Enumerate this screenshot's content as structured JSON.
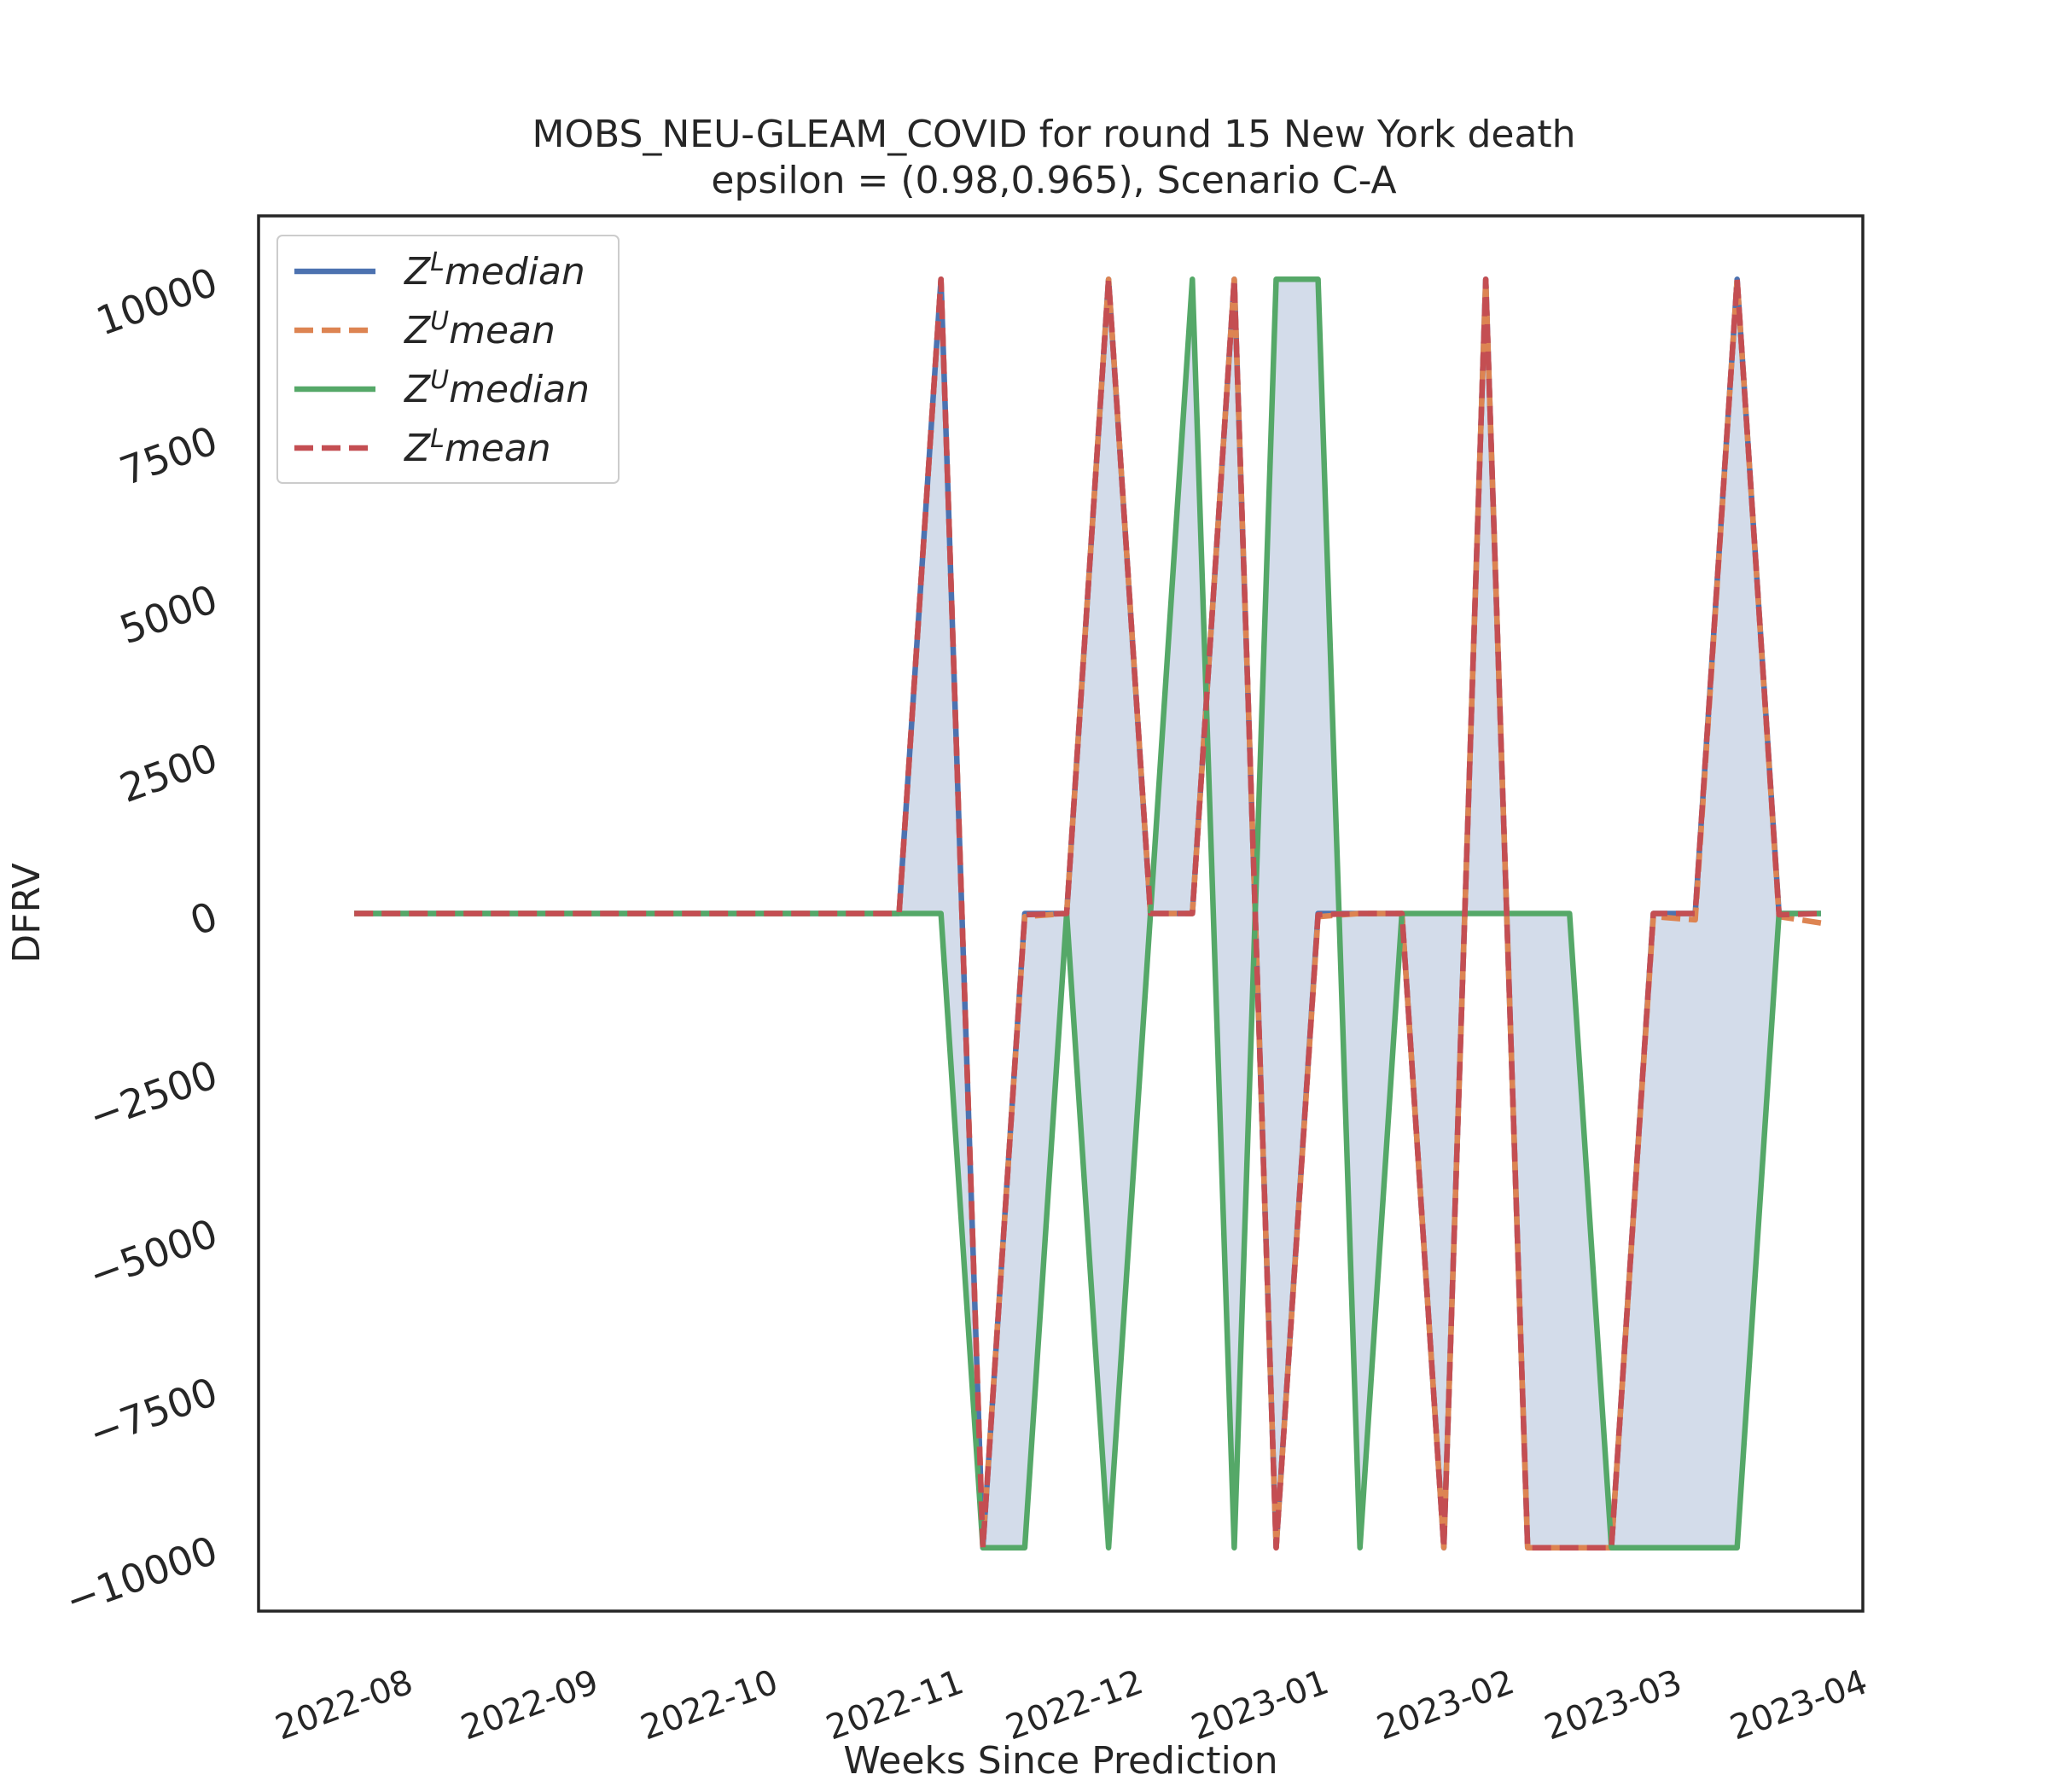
{
  "chart_data": {
    "type": "line",
    "title": "MOBS_NEU-GLEAM_COVID for round 15 New York  death",
    "subtitle": "epsilon = (0.98,0.965), Scenario C-A",
    "xlabel": "Weeks Since Prediction",
    "ylabel": "DFRV",
    "ylim": [
      -11000,
      11000
    ],
    "yticks": [
      "10000",
      "7500",
      "5000",
      "2500",
      "0",
      "−2500",
      "−5000",
      "−7500",
      "−10000"
    ],
    "ytick_values": [
      10000,
      7500,
      5000,
      2500,
      0,
      -2500,
      -5000,
      -7500,
      -10000
    ],
    "xlim": [
      "2022-07-07",
      "2023-04-01"
    ],
    "xticks": [
      "2022-08",
      "2022-09",
      "2022-10",
      "2022-11",
      "2022-12",
      "2023-01",
      "2023-02",
      "2023-03",
      "2023-04"
    ],
    "xtick_dates": [
      "2022-08-01",
      "2022-09-01",
      "2022-10-01",
      "2022-11-01",
      "2022-12-01",
      "2023-01-01",
      "2023-02-01",
      "2023-03-01",
      "2023-04-01"
    ],
    "grid": false,
    "legend_position": "top-left",
    "fill_between": {
      "lower": "Z^U median",
      "upper": "Z^L median",
      "color": "#d3dcea"
    },
    "x": [
      "2022-07-23",
      "2022-07-30",
      "2022-08-06",
      "2022-08-13",
      "2022-08-20",
      "2022-08-27",
      "2022-09-03",
      "2022-09-10",
      "2022-09-17",
      "2022-09-24",
      "2022-10-01",
      "2022-10-08",
      "2022-10-15",
      "2022-10-22",
      "2022-10-29",
      "2022-11-05",
      "2022-11-12",
      "2022-11-19",
      "2022-11-26",
      "2022-12-03",
      "2022-12-10",
      "2022-12-17",
      "2022-12-24",
      "2022-12-31",
      "2023-01-07",
      "2023-01-14",
      "2023-01-21",
      "2023-01-28",
      "2023-02-04",
      "2023-02-11",
      "2023-02-18",
      "2023-02-25",
      "2023-03-04",
      "2023-03-11",
      "2023-03-18",
      "2023-03-25"
    ],
    "series": [
      {
        "name": "Z^L median",
        "style": "solid",
        "color": "#4c72b0",
        "values": [
          0,
          0,
          0,
          0,
          0,
          0,
          0,
          0,
          0,
          0,
          0,
          0,
          0,
          0,
          10000,
          -10000,
          0,
          0,
          10000,
          0,
          0,
          10000,
          -10000,
          0,
          0,
          0,
          -10000,
          10000,
          -10000,
          -10000,
          -10000,
          0,
          0,
          10000,
          0,
          0
        ]
      },
      {
        "name": "Z^U mean",
        "style": "dashed",
        "color": "#dd8452",
        "values": [
          0,
          0,
          0,
          0,
          0,
          0,
          0,
          0,
          0,
          0,
          0,
          0,
          0,
          0,
          10000,
          -9950,
          -50,
          0,
          10000,
          0,
          0,
          10000,
          -10000,
          -50,
          0,
          0,
          -10000,
          10000,
          -10000,
          -10000,
          -10000,
          -50,
          -100,
          10000,
          -50,
          -150
        ]
      },
      {
        "name": "Z^U median",
        "style": "solid",
        "color": "#55a868",
        "values": [
          0,
          0,
          0,
          0,
          0,
          0,
          0,
          0,
          0,
          0,
          0,
          0,
          0,
          0,
          0,
          -10000,
          -10000,
          0,
          -10000,
          0,
          10000,
          -10000,
          10000,
          10000,
          -10000,
          0,
          0,
          0,
          0,
          0,
          -10000,
          -10000,
          -10000,
          -10000,
          0,
          0
        ]
      },
      {
        "name": "Z^L mean",
        "style": "dashed",
        "color": "#c44e52",
        "values": [
          0,
          0,
          0,
          0,
          0,
          0,
          0,
          0,
          0,
          0,
          0,
          0,
          0,
          0,
          10000,
          -10000,
          -20,
          0,
          10000,
          0,
          0,
          10000,
          -10000,
          -20,
          0,
          0,
          -10000,
          10000,
          -10000,
          -10000,
          -10000,
          0,
          0,
          10000,
          -20,
          0
        ]
      }
    ],
    "legend": [
      {
        "sym": "Z",
        "sup": "L",
        "word": "median",
        "color": "#4c72b0",
        "style": "solid"
      },
      {
        "sym": "Z",
        "sup": "U",
        "word": "mean",
        "color": "#dd8452",
        "style": "dashed"
      },
      {
        "sym": "Z",
        "sup": "U",
        "word": "median",
        "color": "#55a868",
        "style": "solid"
      },
      {
        "sym": "Z",
        "sup": "L",
        "word": "mean",
        "color": "#c44e52",
        "style": "dashed"
      }
    ]
  }
}
